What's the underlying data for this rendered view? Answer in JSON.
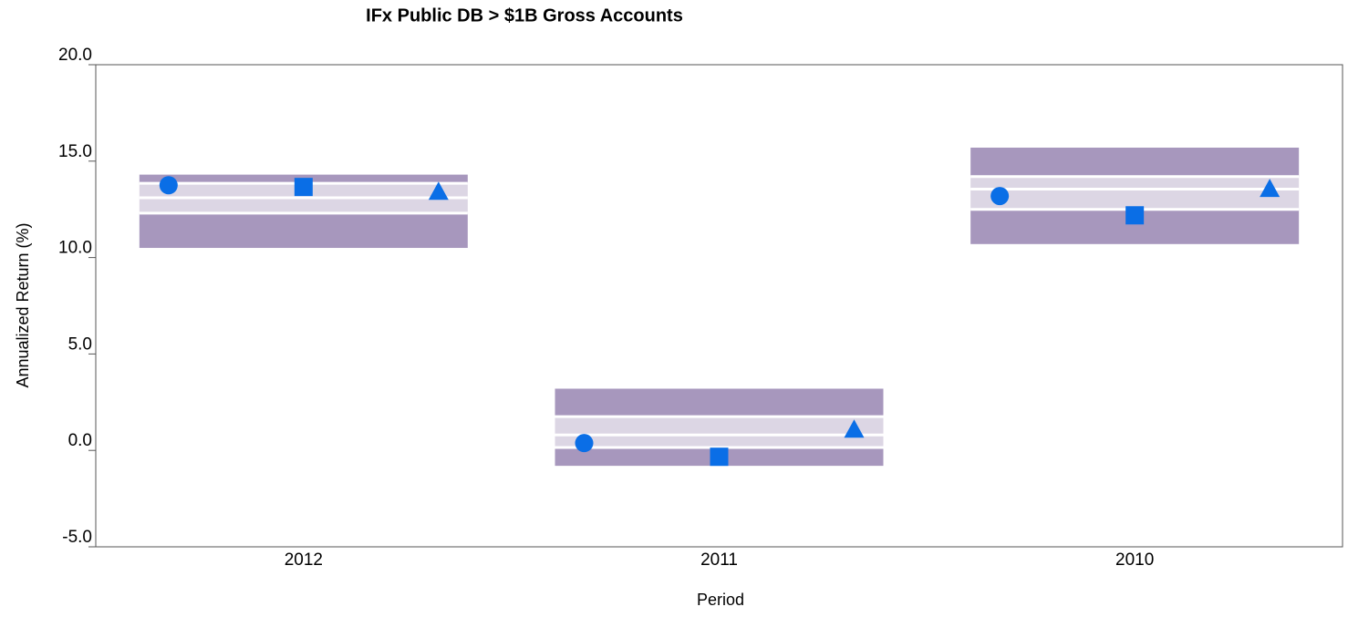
{
  "chart_data": {
    "type": "percentile_range",
    "title": "IFx Public DB > $1B Gross Accounts",
    "x_label": "Period",
    "y_label": "Annualized Return (%)",
    "categories": [
      "2012",
      "2011",
      "2010"
    ],
    "ylim": [
      -5,
      20
    ],
    "yticks": [
      {
        "value": -5,
        "label": "-5.0"
      },
      {
        "value": 0,
        "label": "0.0"
      },
      {
        "value": 5,
        "label": "5.0"
      },
      {
        "value": 10,
        "label": "10.0"
      },
      {
        "value": 15,
        "label": "15.0"
      },
      {
        "value": 20,
        "label": "20.0"
      }
    ],
    "band_colors": [
      "#a797bd",
      "#dcd6e4",
      "#dcd6e4",
      "#a797bd"
    ],
    "bands": [
      [
        14.3,
        13.85,
        13.1,
        12.3,
        10.5
      ],
      [
        3.2,
        1.75,
        0.8,
        0.15,
        -0.8
      ],
      [
        15.7,
        14.2,
        13.55,
        12.5,
        10.7
      ]
    ],
    "series": [
      {
        "marker": "circle",
        "color": "#0a6ee6",
        "values": [
          13.75,
          0.38,
          13.19
        ]
      },
      {
        "marker": "square",
        "color": "#0a6ee6",
        "values": [
          13.66,
          -0.33,
          12.19
        ]
      },
      {
        "marker": "triangle",
        "color": "#0a6ee6",
        "values": [
          13.37,
          1.04,
          13.52
        ]
      }
    ]
  }
}
